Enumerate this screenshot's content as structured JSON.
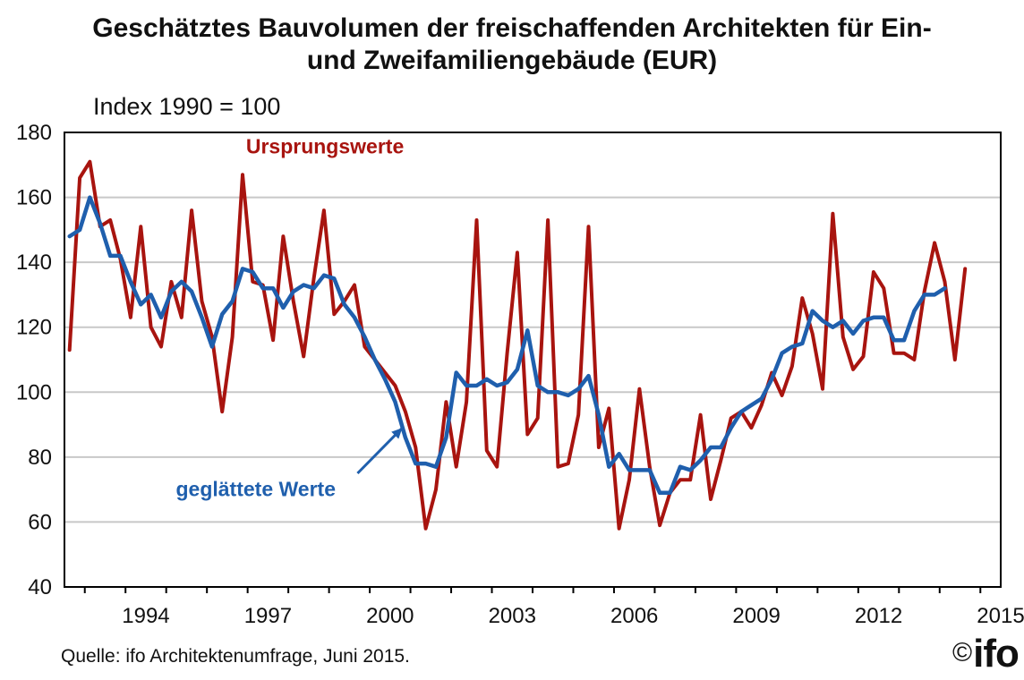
{
  "title_line1": "Geschätztes Bauvolumen der freischaffenden Architekten für Ein-",
  "title_line2": "und Zweifamiliengebäude (EUR)",
  "subtitle": "Index 1990 = 100",
  "source": "Quelle: ifo Architektenumfrage, Juni 2015.",
  "logo": {
    "copyright": "©",
    "text": "ifo"
  },
  "colors": {
    "ursprung": "#a8140f",
    "geglaettet": "#1f5fad",
    "grid": "#c8c8c8",
    "axis": "#000000"
  },
  "chart_data": {
    "type": "line",
    "title": "Geschätztes Bauvolumen der freischaffenden Architekten für Ein- und Zweifamiliengebäude (EUR)",
    "ylabel": "Index 1990 = 100",
    "xlabel": "",
    "xlim": [
      1992.5,
      2015.5
    ],
    "ylim": [
      40,
      180
    ],
    "yticks": [
      40,
      60,
      80,
      100,
      120,
      140,
      160,
      180
    ],
    "xticks": [
      1994,
      1997,
      2000,
      2003,
      2006,
      2009,
      2012,
      2015
    ],
    "grid": true,
    "annotations": [
      {
        "text": "Ursprungswerte",
        "series": "Ursprungswerte"
      },
      {
        "text": "geglättete Werte",
        "series": "geglättete Werte",
        "arrow": true
      }
    ],
    "series": [
      {
        "name": "Ursprungswerte",
        "x": [
          1992.625,
          1992.875,
          1993.125,
          1993.375,
          1993.625,
          1993.875,
          1994.125,
          1994.375,
          1994.625,
          1994.875,
          1995.125,
          1995.375,
          1995.625,
          1995.875,
          1996.125,
          1996.375,
          1996.625,
          1996.875,
          1997.125,
          1997.375,
          1997.625,
          1997.875,
          1998.125,
          1998.375,
          1998.625,
          1998.875,
          1999.125,
          1999.375,
          1999.625,
          1999.875,
          2000.125,
          2000.375,
          2000.625,
          2000.875,
          2001.125,
          2001.375,
          2001.625,
          2001.875,
          2002.125,
          2002.375,
          2002.625,
          2002.875,
          2003.125,
          2003.375,
          2003.625,
          2003.875,
          2004.125,
          2004.375,
          2004.625,
          2004.875,
          2005.125,
          2005.375,
          2005.625,
          2005.875,
          2006.125,
          2006.375,
          2006.625,
          2006.875,
          2007.125,
          2007.375,
          2007.625,
          2007.875,
          2008.125,
          2008.375,
          2008.625,
          2008.875,
          2009.125,
          2009.375,
          2009.625,
          2009.875,
          2010.125,
          2010.375,
          2010.625,
          2010.875,
          2011.125,
          2011.375,
          2011.625,
          2011.875,
          2012.125,
          2012.375,
          2012.625,
          2012.875,
          2013.125,
          2013.375,
          2013.625,
          2013.875,
          2014.125,
          2014.375,
          2014.625
        ],
        "values": [
          113,
          166,
          171,
          151,
          153,
          141,
          123,
          151,
          120,
          114,
          134,
          123,
          156,
          128,
          117,
          94,
          117,
          167,
          134,
          133,
          116,
          148,
          128,
          111,
          135,
          156,
          124,
          128,
          133,
          114,
          110,
          106,
          102,
          94,
          83,
          58,
          70,
          97,
          77,
          97,
          153,
          82,
          77,
          112,
          143,
          87,
          92,
          153,
          77,
          78,
          93,
          151,
          83,
          95,
          58,
          73,
          101,
          77,
          59,
          69,
          73,
          73,
          93,
          67,
          79,
          92,
          94,
          89,
          96,
          106,
          99,
          108,
          129,
          118,
          101,
          155,
          117,
          107,
          111,
          137,
          132,
          112,
          112,
          110,
          131,
          146,
          134,
          110,
          138
        ]
      },
      {
        "name": "geglättete Werte",
        "x": [
          1992.625,
          1992.875,
          1993.125,
          1993.375,
          1993.625,
          1993.875,
          1994.125,
          1994.375,
          1994.625,
          1994.875,
          1995.125,
          1995.375,
          1995.625,
          1995.875,
          1996.125,
          1996.375,
          1996.625,
          1996.875,
          1997.125,
          1997.375,
          1997.625,
          1997.875,
          1998.125,
          1998.375,
          1998.625,
          1998.875,
          1999.125,
          1999.375,
          1999.625,
          1999.875,
          2000.125,
          2000.375,
          2000.625,
          2000.875,
          2001.125,
          2001.375,
          2001.625,
          2001.875,
          2002.125,
          2002.375,
          2002.625,
          2002.875,
          2003.125,
          2003.375,
          2003.625,
          2003.875,
          2004.125,
          2004.375,
          2004.625,
          2004.875,
          2005.125,
          2005.375,
          2005.625,
          2005.875,
          2006.125,
          2006.375,
          2006.625,
          2006.875,
          2007.125,
          2007.375,
          2007.625,
          2007.875,
          2008.125,
          2008.375,
          2008.625,
          2008.875,
          2009.125,
          2009.375,
          2009.625,
          2009.875,
          2010.125,
          2010.375,
          2010.625,
          2010.875,
          2011.125,
          2011.375,
          2011.625,
          2011.875,
          2012.125,
          2012.375,
          2012.625,
          2012.875,
          2013.125,
          2013.375,
          2013.625,
          2013.875,
          2014.125
        ],
        "values": [
          148,
          150,
          160,
          152,
          142,
          142,
          134,
          127,
          130,
          123,
          131,
          134,
          131,
          123,
          114,
          124,
          128,
          138,
          137,
          132,
          132,
          126,
          131,
          133,
          132,
          136,
          135,
          127,
          123,
          117,
          110,
          104,
          97,
          86,
          78,
          78,
          77,
          86,
          106,
          102,
          102,
          104,
          102,
          103,
          107,
          119,
          102,
          100,
          100,
          99,
          101,
          105,
          93,
          77,
          81,
          76,
          76,
          76,
          69,
          69,
          77,
          76,
          79,
          83,
          83,
          89,
          94,
          96,
          98,
          104,
          112,
          114,
          115,
          125,
          122,
          120,
          122,
          118,
          122,
          123,
          123,
          116,
          116,
          125,
          130,
          130,
          132
        ]
      }
    ]
  }
}
